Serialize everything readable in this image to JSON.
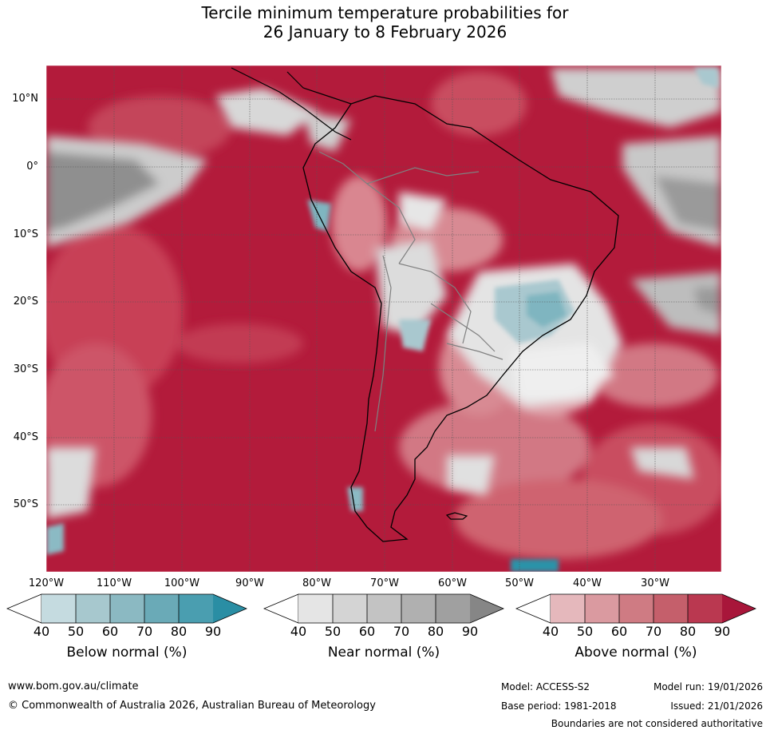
{
  "title_line1": "Tercile minimum temperature probabilities for",
  "title_line2": "26 January to 8 February 2026",
  "map": {
    "lat_labels": [
      "10°N",
      "0°",
      "10°S",
      "20°S",
      "30°S",
      "40°S",
      "50°S"
    ],
    "lon_labels": [
      "120°W",
      "110°W",
      "100°W",
      "90°W",
      "80°W",
      "70°W",
      "60°W",
      "50°W",
      "40°W",
      "30°W"
    ],
    "colors": {
      "above_90": "#b31b3b",
      "above_80": "#c23a52",
      "above_70": "#cf5f6e",
      "above_60": "#d98690",
      "above_50": "#e2abb2",
      "neutral": "#e6e6e6",
      "near_50": "#cfcfcf",
      "near_70": "#b0b0b0",
      "near_90": "#8a8a8a",
      "below_50": "#a9c8cf",
      "below_70": "#6aabb9",
      "below_90": "#2a93a8",
      "coastline": "#000000",
      "border": "#808080"
    }
  },
  "legends": [
    {
      "title": "Below normal (%)",
      "ticks": [
        "40",
        "50",
        "60",
        "70",
        "80",
        "90"
      ],
      "colors": [
        "#ffffff",
        "#c5dbe0",
        "#a7c8ce",
        "#8bb9c2",
        "#6aaab7",
        "#4a9eb0",
        "#2a8ea4"
      ]
    },
    {
      "title": "Near normal (%)",
      "ticks": [
        "40",
        "50",
        "60",
        "70",
        "80",
        "90"
      ],
      "colors": [
        "#ffffff",
        "#e5e5e5",
        "#d4d4d4",
        "#c3c3c3",
        "#b0b0b0",
        "#a0a0a0",
        "#868686"
      ]
    },
    {
      "title": "Above normal (%)",
      "ticks": [
        "40",
        "50",
        "60",
        "70",
        "80",
        "90"
      ],
      "colors": [
        "#ffffff",
        "#e5b8bc",
        "#da9aa0",
        "#cf7b83",
        "#c55f6b",
        "#ba3850",
        "#a8163a"
      ]
    }
  ],
  "footer": {
    "url": "www.bom.gov.au/climate",
    "copyright": "© Commonwealth of Australia 2026, Australian Bureau of Meteorology",
    "model": "Model: ACCESS-S2",
    "model_run": "Model run: 19/01/2026",
    "base_period": "Base period: 1981-2018",
    "issued": "Issued: 21/01/2026",
    "disclaimer": "Boundaries are not considered authoritative"
  }
}
